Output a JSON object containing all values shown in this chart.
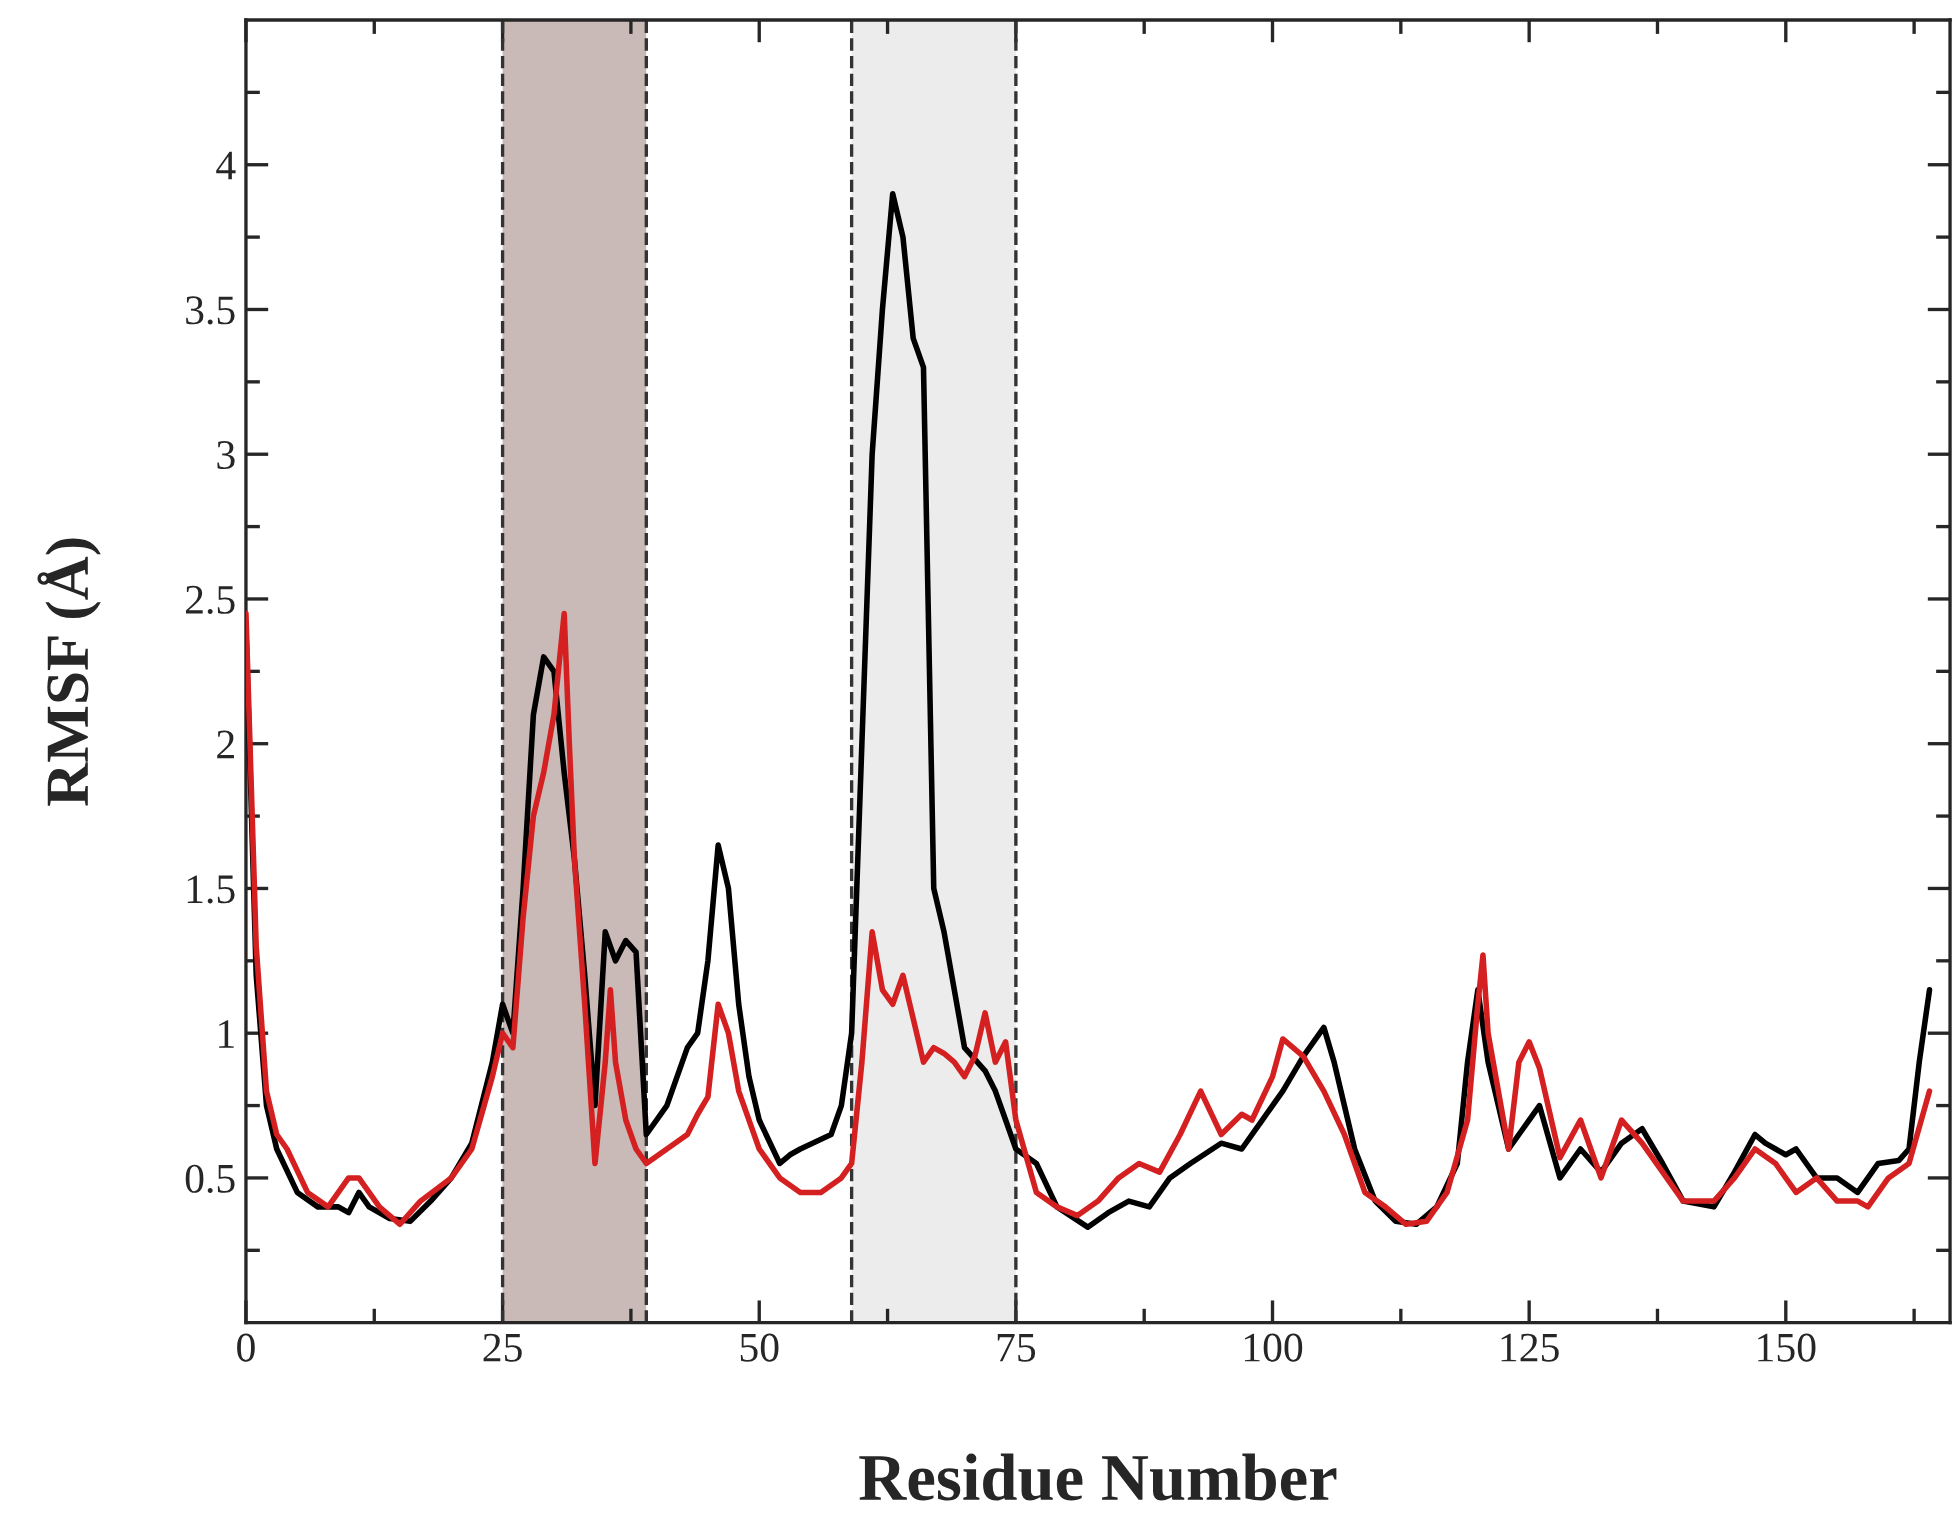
{
  "chart_data": {
    "type": "line",
    "xlabel": "Residue Number",
    "ylabel": "RMSF (Å)",
    "xlim": [
      0,
      166
    ],
    "ylim": [
      0,
      4.5
    ],
    "xticks": [
      0,
      {
        "value": 12.5,
        "label": null
      },
      25,
      {
        "value": 37.5,
        "label": null
      },
      50,
      {
        "value": 62.5,
        "label": null
      },
      75,
      {
        "value": 87.5,
        "label": null
      },
      100,
      {
        "value": 112.5,
        "label": null
      },
      125,
      {
        "value": 137.5,
        "label": null
      },
      150,
      {
        "value": 162.5,
        "label": null
      }
    ],
    "yticks": [
      {
        "value": 0.25,
        "label": null
      },
      0.5,
      {
        "value": 0.75,
        "label": null
      },
      1,
      {
        "value": 1.25,
        "label": null
      },
      1.5,
      {
        "value": 1.75,
        "label": null
      },
      2,
      {
        "value": 2.25,
        "label": null
      },
      2.5,
      {
        "value": 2.75,
        "label": null
      },
      3,
      {
        "value": 3.25,
        "label": null
      },
      3.5,
      {
        "value": 3.75,
        "label": null
      },
      4,
      {
        "value": 4.25,
        "label": null
      }
    ],
    "grid": false,
    "legend": false,
    "marker": "none",
    "line_style": "solid",
    "bands": [
      {
        "axis": "x",
        "from": 25,
        "to": 39,
        "color": "#c9bab7"
      },
      {
        "axis": "x",
        "from": 59,
        "to": 75,
        "color": "#ececec"
      }
    ],
    "ref_lines": [
      {
        "axis": "x",
        "value": 25,
        "color": "#333333",
        "line_style": "dashed"
      },
      {
        "axis": "x",
        "value": 39,
        "color": "#333333",
        "line_style": "dashed"
      },
      {
        "axis": "x",
        "value": 59,
        "color": "#333333",
        "line_style": "dashed"
      },
      {
        "axis": "x",
        "value": 75,
        "color": "#333333",
        "line_style": "dashed"
      }
    ],
    "series": [
      {
        "color": "#000000",
        "x": [
          0,
          1,
          2,
          3,
          5,
          7,
          9,
          10,
          11,
          12,
          14,
          16,
          18,
          20,
          22,
          24,
          25,
          26,
          27,
          28,
          29,
          30,
          31,
          32,
          33,
          34,
          35,
          36,
          37,
          38,
          39,
          41,
          43,
          44,
          45,
          46,
          47,
          48,
          49,
          50,
          52,
          53,
          54,
          57,
          58,
          59,
          60,
          61,
          62,
          63,
          64,
          65,
          66,
          67,
          68,
          69,
          70,
          72,
          73,
          74,
          75,
          77,
          79,
          82,
          84,
          86,
          88,
          90,
          92,
          95,
          97,
          99,
          101,
          103,
          105,
          106,
          108,
          110,
          112,
          114,
          116,
          118,
          119,
          120,
          121,
          123,
          124,
          125,
          126,
          128,
          130,
          132,
          134,
          136,
          138,
          140,
          143,
          145,
          147,
          148,
          150,
          151,
          153,
          155,
          157,
          159,
          161,
          162,
          163,
          164
        ],
        "values": [
          2.4,
          1.2,
          0.75,
          0.6,
          0.45,
          0.4,
          0.4,
          0.38,
          0.45,
          0.4,
          0.36,
          0.35,
          0.42,
          0.5,
          0.62,
          0.9,
          1.1,
          1.0,
          1.5,
          2.1,
          2.3,
          2.25,
          1.9,
          1.6,
          1.2,
          0.75,
          1.35,
          1.25,
          1.32,
          1.28,
          0.65,
          0.75,
          0.95,
          1.0,
          1.25,
          1.65,
          1.5,
          1.1,
          0.85,
          0.7,
          0.55,
          0.58,
          0.6,
          0.65,
          0.75,
          1.0,
          2.0,
          3.0,
          3.5,
          3.9,
          3.75,
          3.4,
          3.3,
          1.5,
          1.35,
          1.15,
          0.95,
          0.87,
          0.8,
          0.7,
          0.6,
          0.55,
          0.4,
          0.33,
          0.38,
          0.42,
          0.4,
          0.5,
          0.55,
          0.62,
          0.6,
          0.7,
          0.8,
          0.92,
          1.02,
          0.9,
          0.6,
          0.42,
          0.35,
          0.34,
          0.4,
          0.55,
          0.9,
          1.15,
          0.9,
          0.6,
          0.65,
          0.7,
          0.75,
          0.5,
          0.6,
          0.52,
          0.62,
          0.67,
          0.55,
          0.42,
          0.4,
          0.52,
          0.65,
          0.62,
          0.58,
          0.6,
          0.5,
          0.5,
          0.45,
          0.55,
          0.56,
          0.6,
          0.9,
          1.15
        ]
      },
      {
        "color": "#d42020",
        "x": [
          0,
          1,
          2,
          3,
          4,
          6,
          8,
          10,
          11,
          13,
          15,
          17,
          20,
          22,
          24,
          25,
          26,
          27,
          28,
          29,
          30,
          31,
          31.5,
          32,
          33,
          34,
          35,
          35.5,
          36,
          37,
          38,
          39,
          41,
          43,
          44,
          45,
          46,
          47,
          48,
          50,
          52,
          54,
          56,
          58,
          59,
          60,
          61,
          62,
          63,
          64,
          65,
          66,
          67,
          68,
          69,
          70,
          71,
          72,
          73,
          74,
          75,
          77,
          79,
          81,
          83,
          85,
          87,
          89,
          91,
          93,
          95,
          97,
          98,
          100,
          101,
          103,
          105,
          107,
          109,
          111,
          113,
          115,
          117,
          119,
          120,
          120.5,
          121,
          123,
          124,
          125,
          126,
          128,
          130,
          132,
          134,
          136,
          138,
          140,
          143,
          145,
          147,
          149,
          151,
          153,
          155,
          157,
          158,
          160,
          162,
          164
        ],
        "values": [
          2.45,
          1.3,
          0.8,
          0.65,
          0.6,
          0.45,
          0.4,
          0.5,
          0.5,
          0.4,
          0.34,
          0.42,
          0.5,
          0.6,
          0.85,
          1.0,
          0.95,
          1.4,
          1.75,
          1.9,
          2.1,
          2.45,
          2.0,
          1.6,
          1.1,
          0.55,
          0.9,
          1.15,
          0.9,
          0.7,
          0.6,
          0.55,
          0.6,
          0.65,
          0.72,
          0.78,
          1.1,
          1.0,
          0.8,
          0.6,
          0.5,
          0.45,
          0.45,
          0.5,
          0.55,
          0.9,
          1.35,
          1.15,
          1.1,
          1.2,
          1.05,
          0.9,
          0.95,
          0.93,
          0.9,
          0.85,
          0.92,
          1.07,
          0.9,
          0.97,
          0.7,
          0.45,
          0.4,
          0.37,
          0.42,
          0.5,
          0.55,
          0.52,
          0.65,
          0.8,
          0.65,
          0.72,
          0.7,
          0.85,
          0.98,
          0.92,
          0.8,
          0.65,
          0.45,
          0.4,
          0.34,
          0.35,
          0.45,
          0.7,
          1.1,
          1.27,
          1.0,
          0.6,
          0.9,
          0.97,
          0.88,
          0.57,
          0.7,
          0.5,
          0.7,
          0.62,
          0.52,
          0.42,
          0.42,
          0.5,
          0.6,
          0.55,
          0.45,
          0.5,
          0.42,
          0.42,
          0.4,
          0.5,
          0.55,
          0.8
        ]
      }
    ]
  }
}
